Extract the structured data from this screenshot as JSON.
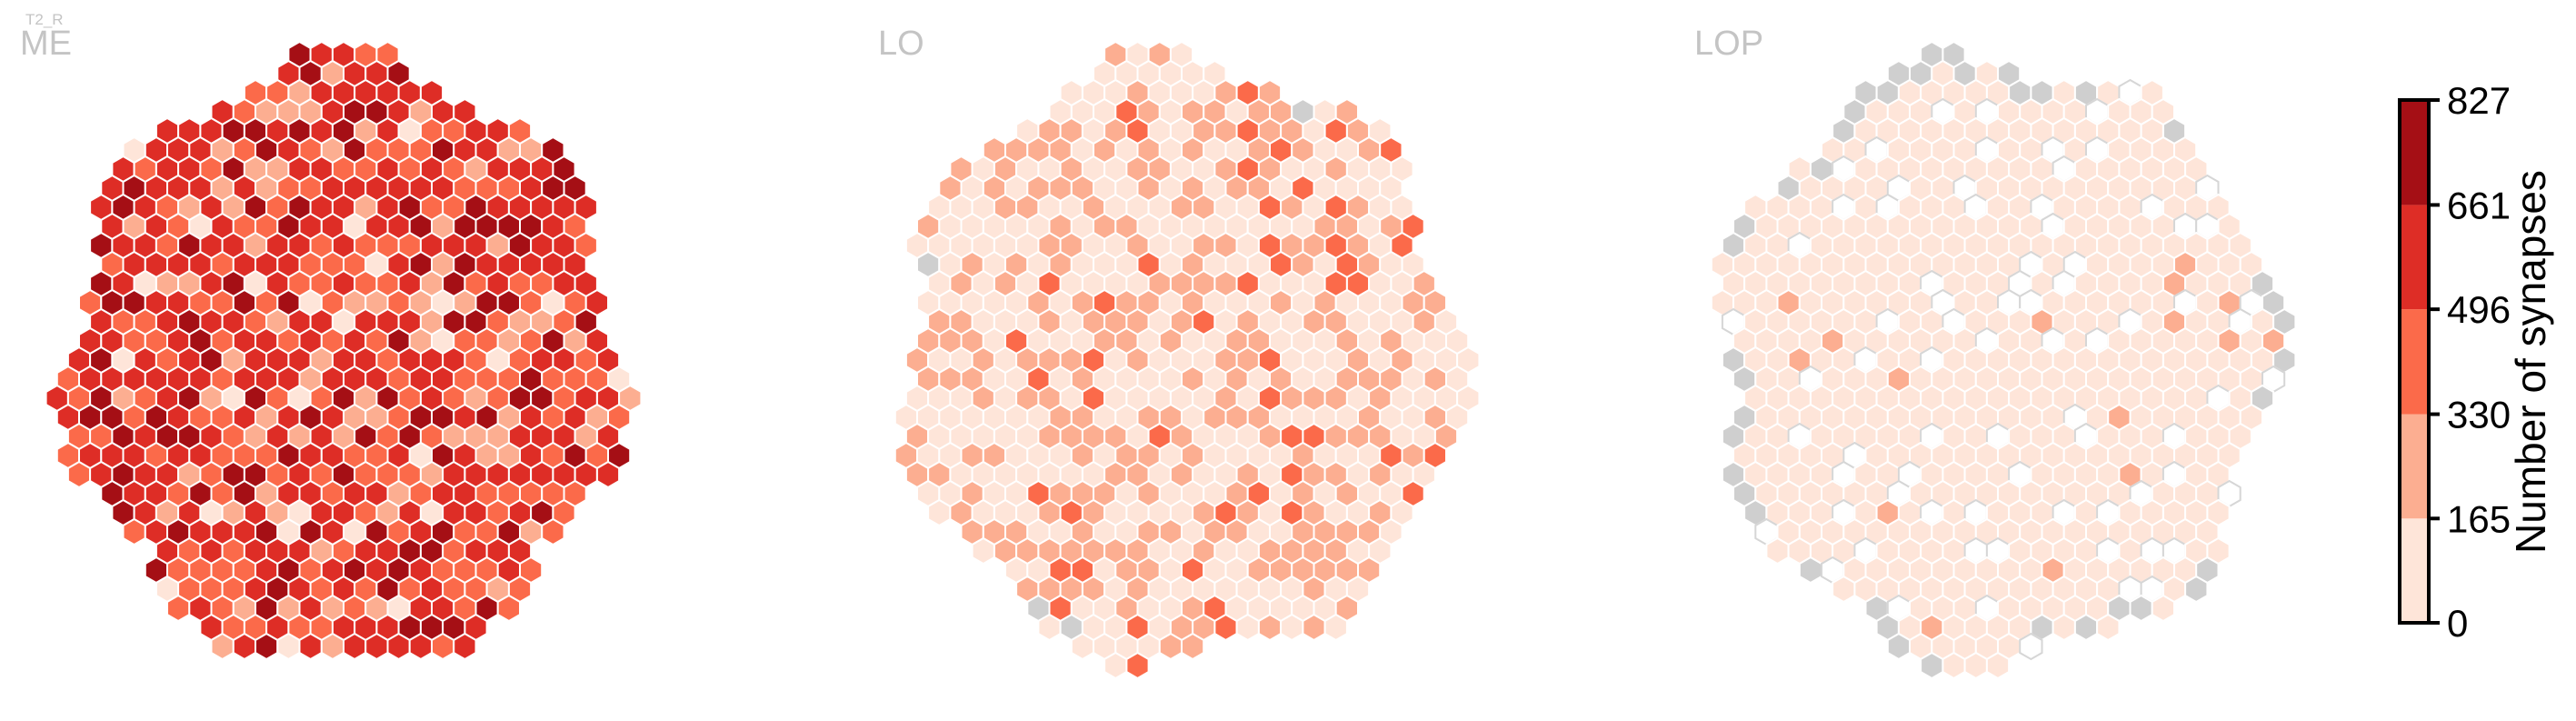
{
  "chart_data": {
    "type": "heatmap",
    "super_title": "T2_R",
    "panels": [
      {
        "name": "ME",
        "level_weights": [
          0,
          0.03,
          0.12,
          0.27,
          0.42,
          0.16
        ],
        "grey_rim": 0.0
      },
      {
        "name": "LO",
        "level_weights": [
          0,
          0.56,
          0.38,
          0.06,
          0,
          0
        ],
        "grey_rim": 0.05
      },
      {
        "name": "LOP",
        "level_weights": [
          0.14,
          0.84,
          0.02,
          0,
          0,
          0
        ],
        "grey_rim": 0.35
      }
    ],
    "colorbar": {
      "label": "Number of synapses",
      "ticks": [
        0,
        165,
        330,
        496,
        661,
        827
      ],
      "range": [
        0,
        827
      ],
      "bins": [
        {
          "from": 0,
          "to": 165,
          "color": "#fee5d9"
        },
        {
          "from": 165,
          "to": 330,
          "color": "#fcae91"
        },
        {
          "from": 330,
          "to": 496,
          "color": "#fb6a4a"
        },
        {
          "from": 496,
          "to": 661,
          "color": "#de2d26"
        },
        {
          "from": 661,
          "to": 827,
          "color": "#a50f15"
        }
      ]
    },
    "empty_color": "#ffffff",
    "no_data_color": "#cfcfcf",
    "hex_edge_color": "#ffffff",
    "empty_edge_color": "#d6d6d6"
  }
}
